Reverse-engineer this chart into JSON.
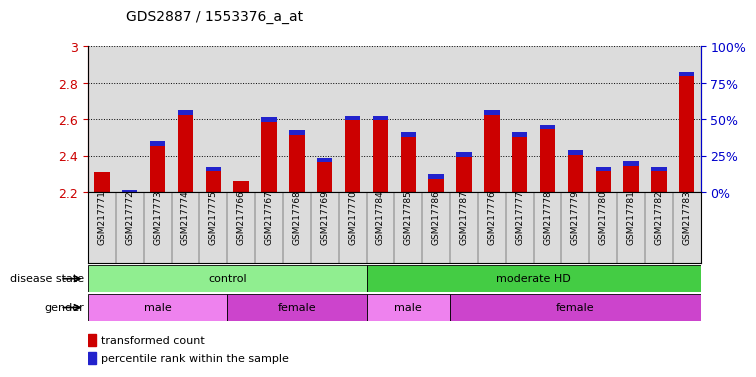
{
  "title": "GDS2887 / 1553376_a_at",
  "samples": [
    "GSM217771",
    "GSM217772",
    "GSM217773",
    "GSM217774",
    "GSM217775",
    "GSM217766",
    "GSM217767",
    "GSM217768",
    "GSM217769",
    "GSM217770",
    "GSM217784",
    "GSM217785",
    "GSM217786",
    "GSM217787",
    "GSM217776",
    "GSM217777",
    "GSM217778",
    "GSM217779",
    "GSM217780",
    "GSM217781",
    "GSM217782",
    "GSM217783"
  ],
  "red_values": [
    2.31,
    2.21,
    2.48,
    2.65,
    2.34,
    2.26,
    2.61,
    2.54,
    2.39,
    2.62,
    2.62,
    2.53,
    2.3,
    2.42,
    2.65,
    2.53,
    2.57,
    2.43,
    2.34,
    2.37,
    2.34,
    2.86
  ],
  "blue_fractions": [
    0.0,
    0.02,
    0.1,
    0.12,
    0.03,
    0.0,
    0.1,
    0.12,
    0.1,
    0.1,
    0.1,
    0.1,
    0.07,
    0.1,
    0.12,
    0.1,
    0.12,
    0.1,
    0.07,
    0.07,
    0.07,
    0.95
  ],
  "ylim_left": [
    2.2,
    3.0
  ],
  "ylim_right": [
    0,
    100
  ],
  "yticks_left": [
    2.2,
    2.4,
    2.6,
    2.8,
    3.0
  ],
  "ytick_labels_left": [
    "2.2",
    "2.4",
    "2.6",
    "2.8",
    "3"
  ],
  "yticks_right": [
    0,
    25,
    50,
    75,
    100
  ],
  "ytick_labels_right": [
    "0%",
    "25%",
    "50%",
    "75%",
    "100%"
  ],
  "bar_width": 0.55,
  "bar_bottom": 2.2,
  "blue_bar_height": 0.025,
  "disease_state_groups": [
    {
      "label": "control",
      "start": 0,
      "end": 10,
      "color": "#90EE90"
    },
    {
      "label": "moderate HD",
      "start": 10,
      "end": 22,
      "color": "#44CC44"
    }
  ],
  "gender_groups": [
    {
      "label": "male",
      "start": 0,
      "end": 5,
      "color": "#EE82EE"
    },
    {
      "label": "female",
      "start": 5,
      "end": 10,
      "color": "#CC44CC"
    },
    {
      "label": "male",
      "start": 10,
      "end": 13,
      "color": "#EE82EE"
    },
    {
      "label": "female",
      "start": 13,
      "end": 22,
      "color": "#CC44CC"
    }
  ],
  "red_color": "#CC0000",
  "blue_color": "#2222CC",
  "bg_color": "#DCDCDC",
  "left_tick_color": "#CC0000",
  "right_tick_color": "#0000CC"
}
